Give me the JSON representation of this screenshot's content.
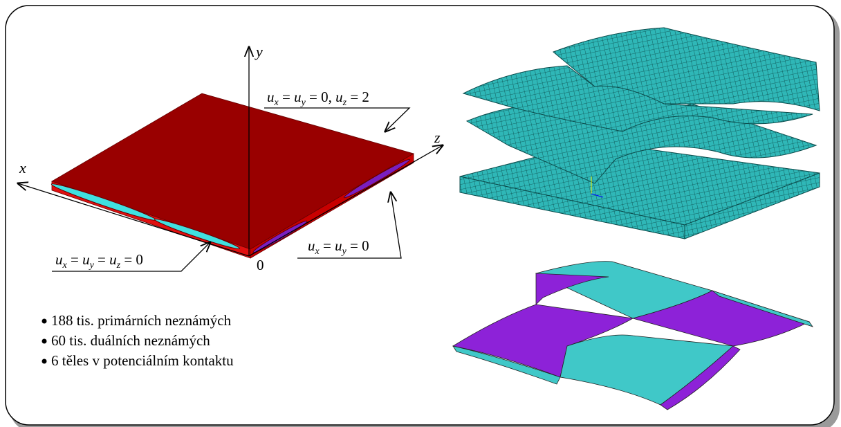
{
  "axes": {
    "y": "y",
    "x": "x",
    "z": "z",
    "origin": "0"
  },
  "conditions": {
    "top": [
      "u",
      "x",
      " = ",
      "u",
      "y",
      " = 0, ",
      "u",
      "z",
      " = 2"
    ],
    "left": [
      "u",
      "x",
      " = ",
      "u",
      "y",
      " = ",
      "u",
      "z",
      " = 0"
    ],
    "right": [
      "u",
      "x",
      " = ",
      "u",
      "y",
      " = 0"
    ]
  },
  "bullets": [
    "188 tis. primárních neznámých",
    "60 tis. duálních neznámých",
    "6 těles v potenciálním kontaktu"
  ]
}
